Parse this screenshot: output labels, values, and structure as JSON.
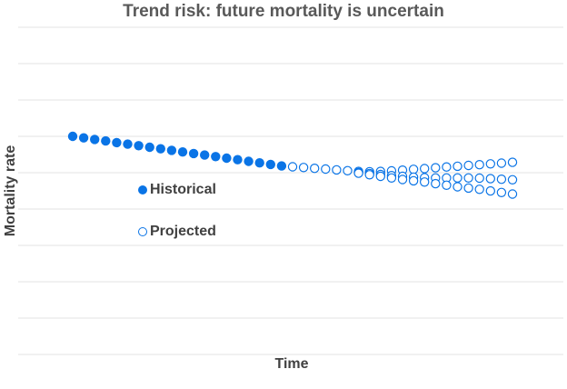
{
  "chart_data": {
    "type": "scatter",
    "title": "Trend risk: future mortality is uncertain",
    "xlabel": "Time",
    "ylabel": "Mortality rate",
    "grid": true,
    "legend_position": "left-center",
    "colors": {
      "historical": "#0a74e6",
      "projected": "#0a74e6"
    },
    "series": [
      {
        "name": "Historical",
        "marker": "filled",
        "x": [
          0,
          1,
          2,
          3,
          4,
          5,
          6,
          7,
          8,
          9,
          10,
          11,
          12,
          13,
          14,
          15,
          16,
          17,
          18,
          19
        ],
        "y": [
          100.0,
          99.4,
          98.8,
          98.2,
          97.6,
          97.0,
          96.4,
          95.8,
          95.2,
          94.6,
          94.0,
          93.4,
          92.8,
          92.2,
          91.6,
          91.0,
          90.4,
          89.8,
          89.2,
          88.6
        ]
      },
      {
        "name": "Projected",
        "marker": "open",
        "x": [
          20,
          21,
          22,
          23,
          24,
          25,
          26,
          27,
          28,
          29,
          30,
          31,
          32,
          33,
          34,
          35,
          36,
          37,
          38,
          39,
          40
        ],
        "y": [
          88.3,
          88.0,
          87.7,
          87.4,
          87.1,
          86.8,
          86.5,
          86.4,
          86.5,
          86.7,
          87.0,
          87.3,
          87.6,
          87.9,
          88.2,
          88.5,
          88.8,
          89.1,
          89.4,
          89.7,
          90.0
        ]
      },
      {
        "name": "",
        "marker": "open",
        "x": [
          26,
          27,
          28,
          29,
          30,
          31,
          32,
          33,
          34,
          35,
          36,
          37,
          38,
          39,
          40
        ],
        "y": [
          86.1,
          85.7,
          85.3,
          84.9,
          84.6,
          84.3,
          84.1,
          84.0,
          84.0,
          84.0,
          84.0,
          83.9,
          83.7,
          83.5,
          83.3
        ]
      },
      {
        "name": "",
        "marker": "open",
        "x": [
          26,
          27,
          28,
          29,
          30,
          31,
          32,
          33,
          34,
          35,
          36,
          37,
          38,
          39,
          40
        ],
        "y": [
          85.8,
          85.2,
          84.6,
          84.0,
          83.4,
          82.9,
          82.4,
          81.8,
          81.2,
          80.6,
          80.1,
          79.6,
          79.0,
          78.4,
          77.8
        ]
      }
    ]
  },
  "legend": {
    "historical_label": "Historical",
    "projected_label": "Projected"
  }
}
